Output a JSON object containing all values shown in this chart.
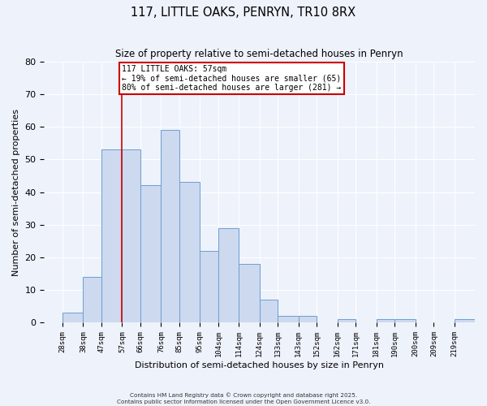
{
  "title": "117, LITTLE OAKS, PENRYN, TR10 8RX",
  "subtitle": "Size of property relative to semi-detached houses in Penryn",
  "xlabel": "Distribution of semi-detached houses by size in Penryn",
  "ylabel": "Number of semi-detached properties",
  "tick_positions": [
    28,
    38,
    47,
    57,
    66,
    76,
    85,
    95,
    104,
    114,
    124,
    133,
    143,
    152,
    162,
    171,
    181,
    190,
    200,
    209,
    219
  ],
  "tick_labels": [
    "28sqm",
    "38sqm",
    "47sqm",
    "57sqm",
    "66sqm",
    "76sqm",
    "85sqm",
    "95sqm",
    "104sqm",
    "114sqm",
    "124sqm",
    "133sqm",
    "143sqm",
    "152sqm",
    "162sqm",
    "171sqm",
    "181sqm",
    "190sqm",
    "200sqm",
    "209sqm",
    "219sqm"
  ],
  "bar_heights": [
    3,
    14,
    53,
    53,
    42,
    59,
    43,
    22,
    29,
    18,
    7,
    2,
    2,
    0,
    1,
    0,
    1,
    1,
    0,
    0,
    1
  ],
  "bar_color": "#cdd9ee",
  "bar_edge_color": "#6b9fd4",
  "background_color": "#eef2fb",
  "grid_color": "#ffffff",
  "vline_x": 57,
  "vline_color": "#cc0000",
  "annotation_title": "117 LITTLE OAKS: 57sqm",
  "annotation_line1": "← 19% of semi-detached houses are smaller (65)",
  "annotation_line2": "80% of semi-detached houses are larger (281) →",
  "annotation_box_facecolor": "#ffffff",
  "annotation_box_edgecolor": "#cc0000",
  "ylim": [
    0,
    80
  ],
  "yticks": [
    0,
    10,
    20,
    30,
    40,
    50,
    60,
    70,
    80
  ],
  "xlim_left": 19,
  "xlim_right": 229,
  "footnote1": "Contains HM Land Registry data © Crown copyright and database right 2025.",
  "footnote2": "Contains public sector information licensed under the Open Government Licence v3.0."
}
